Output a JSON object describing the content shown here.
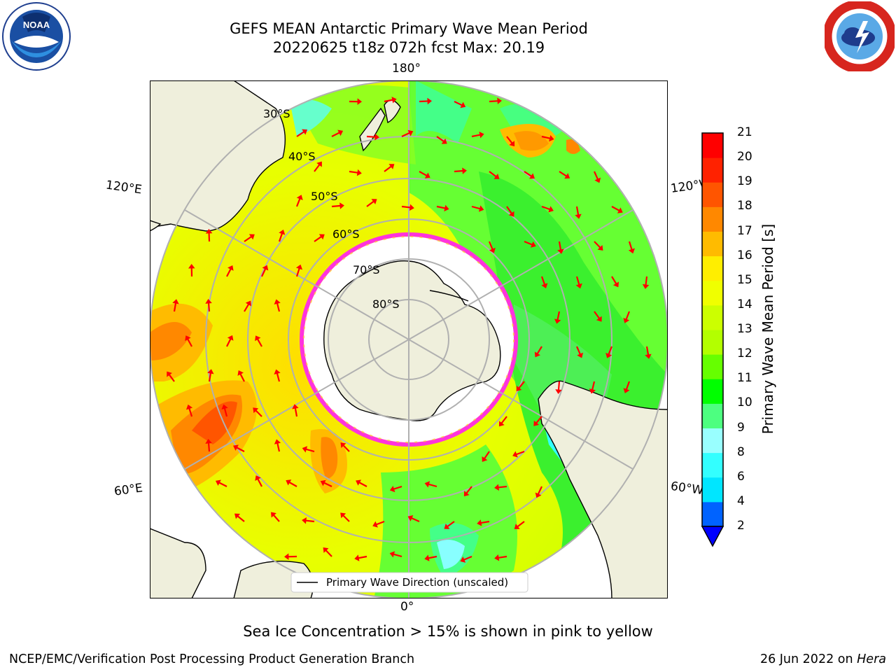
{
  "header": {
    "title_line1": "GEFS MEAN Antarctic Primary Wave Mean Period",
    "title_line2": "20220625 t18z 072h fcst   Max: 20.19"
  },
  "map": {
    "lon_labels": {
      "top": "180°",
      "bottom": "0°",
      "left_upper": "120°E",
      "left_lower": "60°E",
      "right_upper": "120°W",
      "right_lower": "60°W"
    },
    "lat_labels": [
      "30°S",
      "40°S",
      "50°S",
      "60°S",
      "70°S",
      "80°S"
    ],
    "legend": "Primary Wave Direction (unscaled)",
    "colors": {
      "land": "#efefdc",
      "ice_edge": "#ff33dd",
      "arrow": "#ff0000",
      "grid": "#b0b0b0"
    }
  },
  "colorbar": {
    "label": "Primary Wave Mean Period [s]",
    "ticks": [
      "2",
      "4",
      "6",
      "8",
      "9",
      "10",
      "11",
      "12",
      "13",
      "14",
      "15",
      "16",
      "17",
      "18",
      "19",
      "20",
      "21"
    ],
    "colors": [
      "#0063ff",
      "#00e6ff",
      "#33ffff",
      "#99ffff",
      "#4dff80",
      "#00ff00",
      "#66ff00",
      "#b3ff00",
      "#ccff00",
      "#f0ff00",
      "#ffee00",
      "#ffbb00",
      "#ff8800",
      "#ff5500",
      "#ff2200",
      "#ff0000"
    ],
    "under_color": "#0000ff"
  },
  "footer": {
    "note": "Sea Ice Concentration > 15% is shown in pink to yellow",
    "credit": "NCEP/EMC/Verification Post Processing Product Generation Branch",
    "date": "26 Jun 2022 on ",
    "machine": "Hera"
  }
}
